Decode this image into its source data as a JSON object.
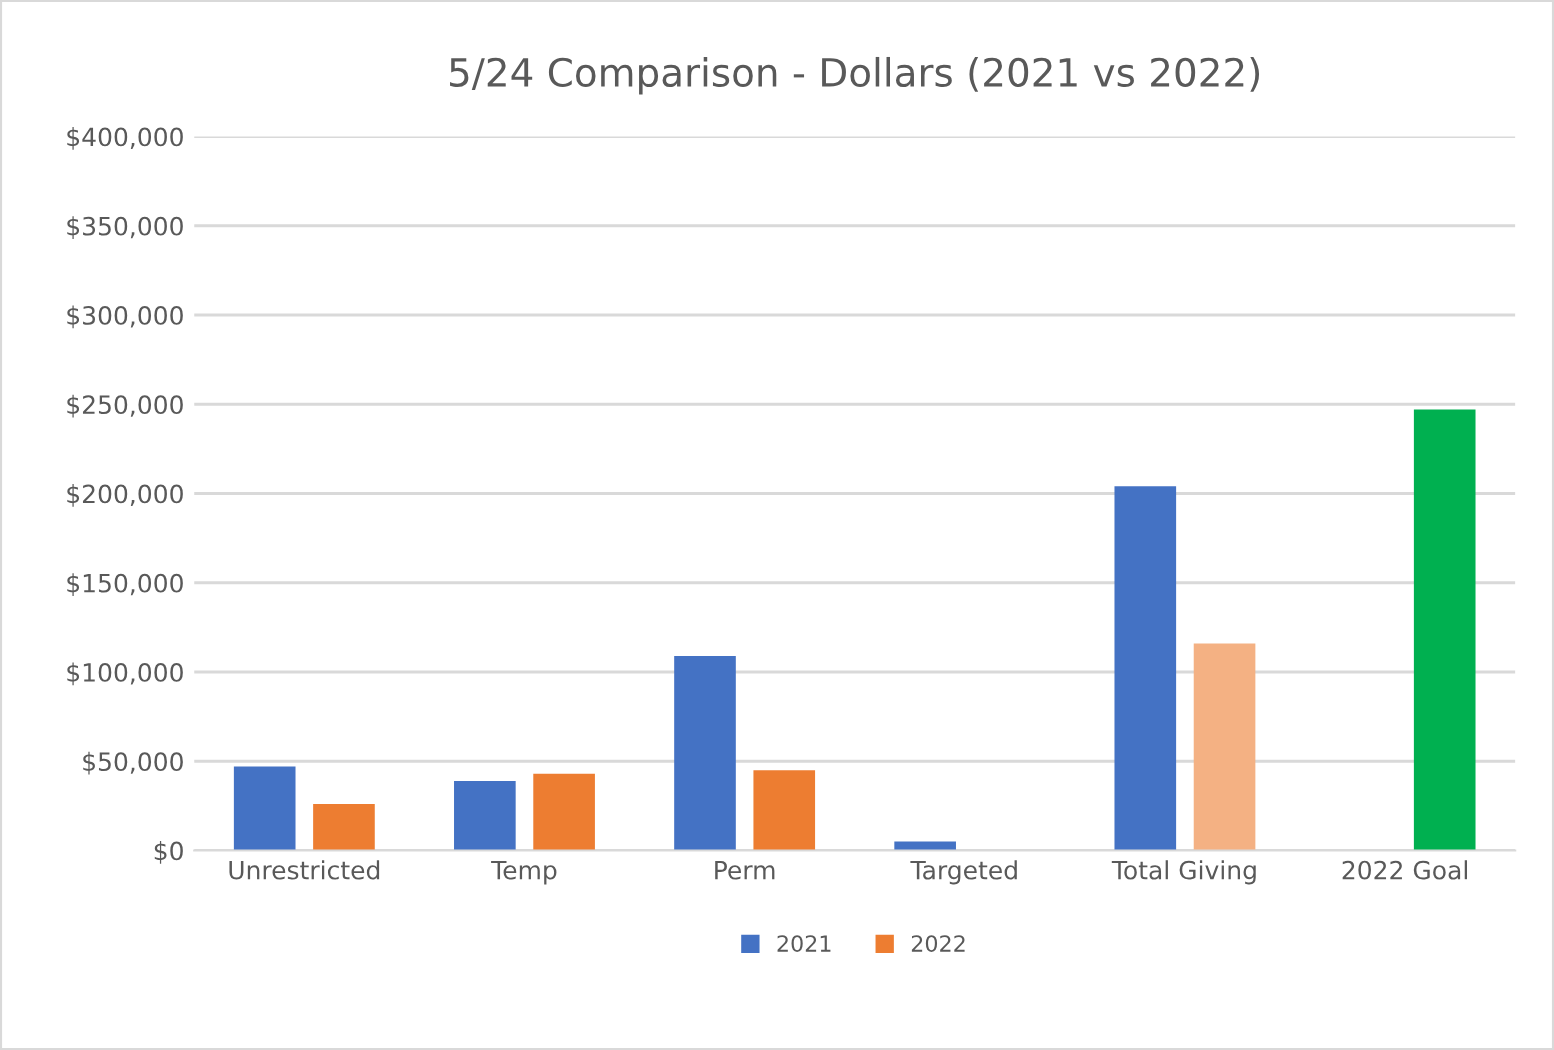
{
  "chart_data": {
    "type": "bar",
    "title": "5/24 Comparison - Dollars (2021 vs 2022)",
    "categories": [
      "Unrestricted",
      "Temp",
      "Perm",
      "Targeted",
      "Total Giving",
      "2022 Goal"
    ],
    "series": [
      {
        "name": "2021",
        "color": "#4472c4",
        "values": [
          47000,
          39000,
          109000,
          5000,
          204000,
          null
        ]
      },
      {
        "name": "2022",
        "color": "#ed7d31",
        "colors": [
          "#ed7d31",
          "#ed7d31",
          "#ed7d31",
          "#ed7d31",
          "#f4b183",
          "#00b050"
        ],
        "values": [
          26000,
          43000,
          45000,
          null,
          116000,
          247000
        ]
      }
    ],
    "ylim": [
      0,
      400000
    ],
    "yticks": [
      {
        "value": 0,
        "label": "$0"
      },
      {
        "value": 50000,
        "label": "$50,000"
      },
      {
        "value": 100000,
        "label": "$100,000"
      },
      {
        "value": 150000,
        "label": "$150,000"
      },
      {
        "value": 200000,
        "label": "$200,000"
      },
      {
        "value": 250000,
        "label": "$250,000"
      },
      {
        "value": 300000,
        "label": "$300,000"
      },
      {
        "value": 350000,
        "label": "$350,000"
      },
      {
        "value": 400000,
        "label": "$400,000"
      }
    ],
    "grid": "y",
    "legend": "bottom"
  }
}
